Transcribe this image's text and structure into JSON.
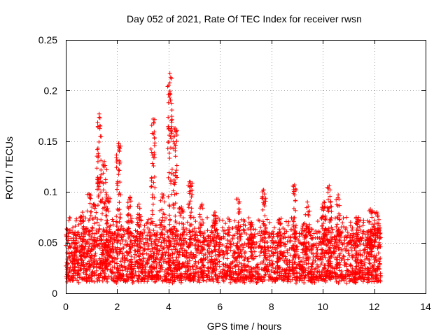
{
  "chart_data": {
    "type": "scatter",
    "title": "Day 052 of 2021, Rate Of TEC Index for receiver rwsn",
    "xlabel": "GPS time / hours",
    "ylabel": "ROTI / TECUs",
    "xlim": [
      0,
      14
    ],
    "ylim": [
      0,
      0.25
    ],
    "xticks": [
      0,
      2,
      4,
      6,
      8,
      10,
      12,
      14
    ],
    "yticks": [
      0,
      0.05,
      0.1,
      0.15,
      0.2,
      0.25
    ],
    "xtick_labels": [
      "0",
      "2",
      "4",
      "6",
      "8",
      "10",
      "12",
      "14"
    ],
    "ytick_labels": [
      "0",
      "0.05",
      "0.1",
      "0.15",
      "0.2",
      "0.25"
    ],
    "grid": true,
    "marker": "+",
    "color": "#ff0000",
    "series": [
      {
        "name": "ROTI",
        "x_range": [
          0,
          12.25
        ],
        "typical_range": [
          0.01,
          0.06
        ],
        "bursts": [
          {
            "x": 0.35,
            "peak": 0.045
          },
          {
            "x": 0.65,
            "peak": 0.08
          },
          {
            "x": 0.9,
            "peak": 0.098
          },
          {
            "x": 1.1,
            "peak": 0.088
          },
          {
            "x": 1.3,
            "peak": 0.177
          },
          {
            "x": 1.5,
            "peak": 0.13
          },
          {
            "x": 1.65,
            "peak": 0.095
          },
          {
            "x": 2.05,
            "peak": 0.148
          },
          {
            "x": 2.5,
            "peak": 0.095
          },
          {
            "x": 2.85,
            "peak": 0.088
          },
          {
            "x": 3.4,
            "peak": 0.172
          },
          {
            "x": 3.75,
            "peak": 0.098
          },
          {
            "x": 4.05,
            "peak": 0.217
          },
          {
            "x": 4.25,
            "peak": 0.163
          },
          {
            "x": 4.5,
            "peak": 0.085
          },
          {
            "x": 4.85,
            "peak": 0.11
          },
          {
            "x": 5.3,
            "peak": 0.088
          },
          {
            "x": 5.8,
            "peak": 0.08
          },
          {
            "x": 6.7,
            "peak": 0.093
          },
          {
            "x": 7.2,
            "peak": 0.07
          },
          {
            "x": 7.7,
            "peak": 0.102
          },
          {
            "x": 8.3,
            "peak": 0.073
          },
          {
            "x": 8.9,
            "peak": 0.107
          },
          {
            "x": 9.4,
            "peak": 0.09
          },
          {
            "x": 10.05,
            "peak": 0.09
          },
          {
            "x": 10.25,
            "peak": 0.106
          },
          {
            "x": 10.6,
            "peak": 0.097
          },
          {
            "x": 11.3,
            "peak": 0.075
          },
          {
            "x": 11.85,
            "peak": 0.083
          },
          {
            "x": 12.1,
            "peak": 0.08
          }
        ]
      }
    ]
  }
}
